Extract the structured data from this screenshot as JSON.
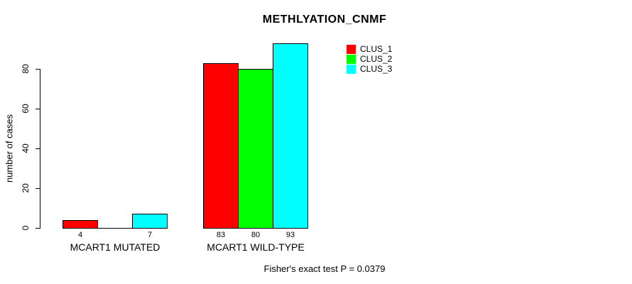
{
  "chart_data": {
    "type": "bar",
    "title": "METHLYATION_CNMF",
    "ylabel": "number of cases",
    "xlabel": "",
    "ylim": [
      0,
      93
    ],
    "yticks": [
      0,
      20,
      40,
      60,
      80
    ],
    "grid": false,
    "legend_position": "top-right-outside",
    "categories": [
      "MCART1 MUTATED",
      "MCART1 WILD-TYPE"
    ],
    "series": [
      {
        "name": "CLUS_1",
        "color": "#FF0000",
        "values": [
          4,
          83
        ]
      },
      {
        "name": "CLUS_2",
        "color": "#00FF00",
        "values": [
          0,
          80
        ]
      },
      {
        "name": "CLUS_3",
        "color": "#00FFFF",
        "values": [
          7,
          93
        ]
      }
    ],
    "bar_value_labels": [
      [
        "4",
        "",
        "7"
      ],
      [
        "83",
        "80",
        "93"
      ]
    ],
    "footnote": "Fisher's exact test P = 0.0379"
  },
  "colors": {
    "background": "#FFFFFF",
    "axis": "#000000",
    "text": "#000000"
  }
}
